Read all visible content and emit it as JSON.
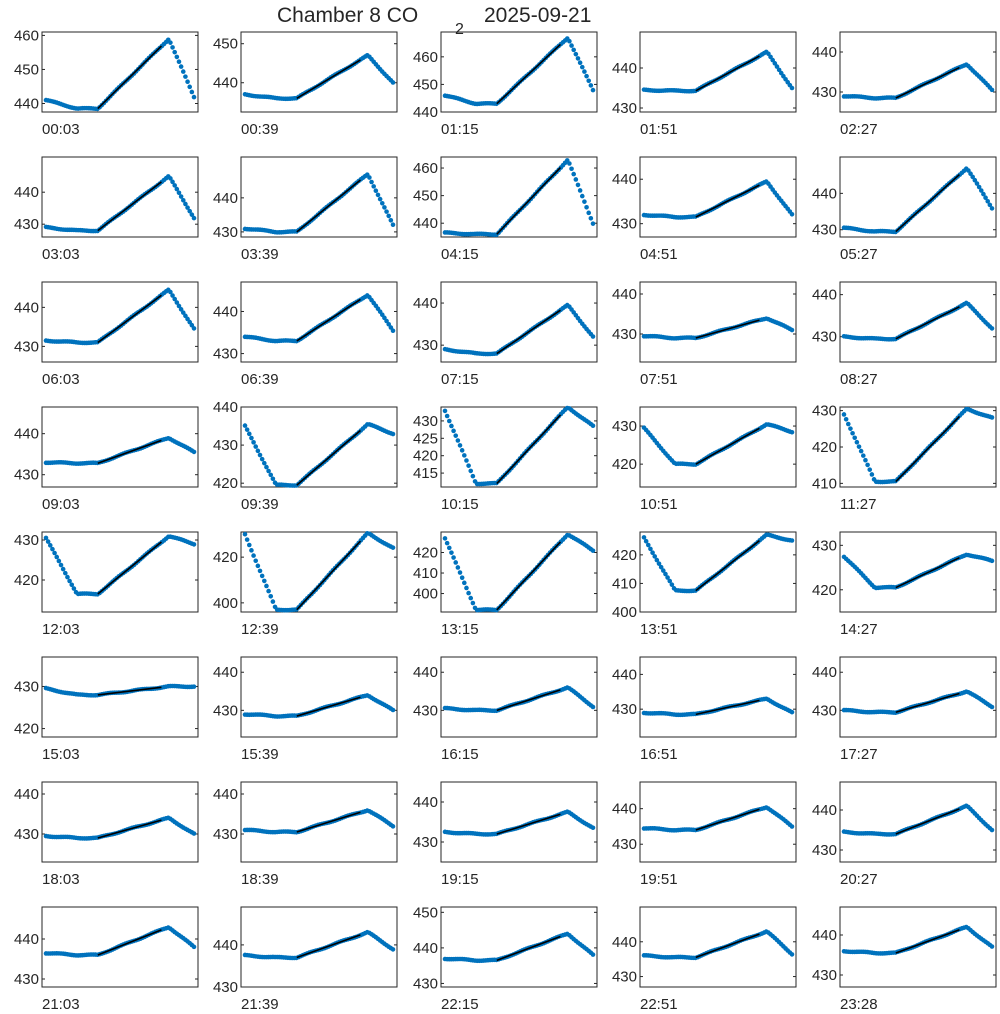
{
  "figure": {
    "title": "Chamber 8 CO",
    "title_subscript": "2",
    "title_date": "2025-09-21"
  },
  "colors": {
    "points": "#0072BD",
    "fit": "#000000",
    "axes": "#262626"
  },
  "chart_data": {
    "type": "scatter",
    "layout": "small-multiples grid, 5 columns x 8 rows; each panel shows CO2 concentration vs time with a black linear fit line",
    "panels": [
      {
        "label": "00:03",
        "yticks": [
          440,
          450,
          460
        ],
        "ylim": [
          437.5,
          461
        ],
        "base": 441,
        "low": 438.5,
        "peak": 459,
        "end": 442
      },
      {
        "label": "00:39",
        "yticks": [
          440,
          450
        ],
        "ylim": [
          432.5,
          453
        ],
        "base": 437,
        "low": 436,
        "peak": 447,
        "end": 440
      },
      {
        "label": "01:15",
        "yticks": [
          440,
          450,
          460
        ],
        "ylim": [
          440,
          469
        ],
        "base": 446,
        "low": 443,
        "peak": 467,
        "end": 448
      },
      {
        "label": "01:51",
        "yticks": [
          430,
          440
        ],
        "ylim": [
          429,
          449
        ],
        "base": 434.5,
        "low": 434.3,
        "peak": 444,
        "end": 435
      },
      {
        "label": "02:27",
        "yticks": [
          430,
          440
        ],
        "ylim": [
          425,
          445
        ],
        "base": 429,
        "low": 428.5,
        "peak": 437,
        "end": 430.5
      },
      {
        "label": "03:03",
        "yticks": [
          430,
          440
        ],
        "ylim": [
          426,
          451
        ],
        "base": 429,
        "low": 428,
        "peak": 445,
        "end": 432
      },
      {
        "label": "03:39",
        "yticks": [
          430,
          440
        ],
        "ylim": [
          428.5,
          452
        ],
        "base": 431,
        "low": 430,
        "peak": 447,
        "end": 432
      },
      {
        "label": "04:15",
        "yticks": [
          440,
          450,
          460
        ],
        "ylim": [
          435,
          464
        ],
        "base": 436.5,
        "low": 436,
        "peak": 463,
        "end": 440
      },
      {
        "label": "04:51",
        "yticks": [
          430,
          440
        ],
        "ylim": [
          427,
          445
        ],
        "base": 432,
        "low": 431.5,
        "peak": 439.5,
        "end": 432
      },
      {
        "label": "05:27",
        "yticks": [
          430,
          440
        ],
        "ylim": [
          428,
          450
        ],
        "base": 430.5,
        "low": 429.5,
        "peak": 447,
        "end": 436
      },
      {
        "label": "06:03",
        "yticks": [
          430,
          440
        ],
        "ylim": [
          426,
          446.5
        ],
        "base": 431.5,
        "low": 431,
        "peak": 444.5,
        "end": 434.5
      },
      {
        "label": "06:39",
        "yticks": [
          430,
          440
        ],
        "ylim": [
          428,
          447
        ],
        "base": 434,
        "low": 433,
        "peak": 444,
        "end": 435.5
      },
      {
        "label": "07:15",
        "yticks": [
          430,
          440
        ],
        "ylim": [
          426,
          445
        ],
        "base": 429,
        "low": 428,
        "peak": 439.5,
        "end": 432
      },
      {
        "label": "07:51",
        "yticks": [
          430,
          440
        ],
        "ylim": [
          423,
          443
        ],
        "base": 429.5,
        "low": 429,
        "peak": 434,
        "end": 431
      },
      {
        "label": "08:27",
        "yticks": [
          430,
          440
        ],
        "ylim": [
          424,
          443
        ],
        "base": 430,
        "low": 429.5,
        "peak": 438,
        "end": 432
      },
      {
        "label": "09:03",
        "yticks": [
          430,
          440
        ],
        "ylim": [
          427,
          446.5
        ],
        "base": 433,
        "low": 432.8,
        "peak": 439,
        "end": 435.5
      },
      {
        "label": "09:39",
        "yticks": [
          420,
          430,
          440
        ],
        "ylim": [
          419,
          440
        ],
        "base": 435,
        "low": 419.5,
        "peak": 435.5,
        "end": 433
      },
      {
        "label": "10:15",
        "yticks": [
          415,
          420,
          425,
          430
        ],
        "ylim": [
          411,
          434
        ],
        "base": 433,
        "low": 412,
        "peak": 434,
        "end": 428.5
      },
      {
        "label": "10:51",
        "yticks": [
          420,
          430
        ],
        "ylim": [
          414,
          435
        ],
        "base": 429.5,
        "low": 420,
        "peak": 430.5,
        "end": 428.5
      },
      {
        "label": "11:27",
        "yticks": [
          410,
          420,
          430
        ],
        "ylim": [
          409,
          431
        ],
        "base": 429,
        "low": 410.5,
        "peak": 430.5,
        "end": 428
      },
      {
        "label": "12:03",
        "yticks": [
          420,
          430
        ],
        "ylim": [
          412,
          432
        ],
        "base": 430.5,
        "low": 416.5,
        "peak": 431,
        "end": 429
      },
      {
        "label": "12:39",
        "yticks": [
          400,
          420
        ],
        "ylim": [
          396,
          431
        ],
        "base": 430,
        "low": 397,
        "peak": 430.5,
        "end": 424
      },
      {
        "label": "13:15",
        "yticks": [
          400,
          410,
          420
        ],
        "ylim": [
          391,
          430
        ],
        "base": 427,
        "low": 392,
        "peak": 429,
        "end": 421
      },
      {
        "label": "13:51",
        "yticks": [
          400,
          410,
          420
        ],
        "ylim": [
          400,
          428
        ],
        "base": 426,
        "low": 407.5,
        "peak": 427,
        "end": 425
      },
      {
        "label": "14:27",
        "yticks": [
          420,
          430
        ],
        "ylim": [
          415,
          433
        ],
        "base": 427.5,
        "low": 420.5,
        "peak": 428,
        "end": 426.5
      },
      {
        "label": "15:03",
        "yticks": [
          420,
          430
        ],
        "ylim": [
          418,
          437
        ],
        "base": 429.5,
        "low": 428,
        "peak": 430,
        "end": 430
      },
      {
        "label": "15:39",
        "yticks": [
          430,
          440
        ],
        "ylim": [
          423,
          444
        ],
        "base": 429,
        "low": 428.5,
        "peak": 434,
        "end": 430
      },
      {
        "label": "16:15",
        "yticks": [
          430,
          440
        ],
        "ylim": [
          423,
          444
        ],
        "base": 430.5,
        "low": 430,
        "peak": 436,
        "end": 431
      },
      {
        "label": "16:51",
        "yticks": [
          430,
          440
        ],
        "ylim": [
          422,
          445
        ],
        "base": 429,
        "low": 428.5,
        "peak": 433,
        "end": 429
      },
      {
        "label": "17:27",
        "yticks": [
          430,
          440
        ],
        "ylim": [
          423,
          444
        ],
        "base": 430,
        "low": 429.5,
        "peak": 435,
        "end": 431
      },
      {
        "label": "18:03",
        "yticks": [
          430,
          440
        ],
        "ylim": [
          423,
          443
        ],
        "base": 429.5,
        "low": 429,
        "peak": 434,
        "end": 430
      },
      {
        "label": "18:39",
        "yticks": [
          430,
          440
        ],
        "ylim": [
          423,
          443
        ],
        "base": 431,
        "low": 430.5,
        "peak": 436,
        "end": 432
      },
      {
        "label": "19:15",
        "yticks": [
          430,
          440
        ],
        "ylim": [
          425,
          445
        ],
        "base": 432.5,
        "low": 432,
        "peak": 437.5,
        "end": 433.5
      },
      {
        "label": "19:51",
        "yticks": [
          430,
          440
        ],
        "ylim": [
          425,
          447.5
        ],
        "base": 434.5,
        "low": 434,
        "peak": 440.5,
        "end": 435
      },
      {
        "label": "20:27",
        "yticks": [
          430,
          440
        ],
        "ylim": [
          427,
          447
        ],
        "base": 434.5,
        "low": 434,
        "peak": 441,
        "end": 435
      },
      {
        "label": "21:03",
        "yticks": [
          430,
          440
        ],
        "ylim": [
          428,
          448
        ],
        "base": 436.5,
        "low": 436,
        "peak": 443,
        "end": 438
      },
      {
        "label": "21:39",
        "yticks": [
          430,
          440
        ],
        "ylim": [
          430,
          449
        ],
        "base": 437.5,
        "low": 437,
        "peak": 443,
        "end": 439
      },
      {
        "label": "22:15",
        "yticks": [
          430,
          440,
          450
        ],
        "ylim": [
          429,
          451.5
        ],
        "base": 437,
        "low": 436.5,
        "peak": 444,
        "end": 438
      },
      {
        "label": "22:51",
        "yticks": [
          430,
          440
        ],
        "ylim": [
          427,
          450
        ],
        "base": 436,
        "low": 435.5,
        "peak": 443,
        "end": 436.5
      },
      {
        "label": "23:28",
        "yticks": [
          430,
          440
        ],
        "ylim": [
          427,
          447
        ],
        "base": 436,
        "low": 435.5,
        "peak": 442,
        "end": 437
      }
    ]
  }
}
